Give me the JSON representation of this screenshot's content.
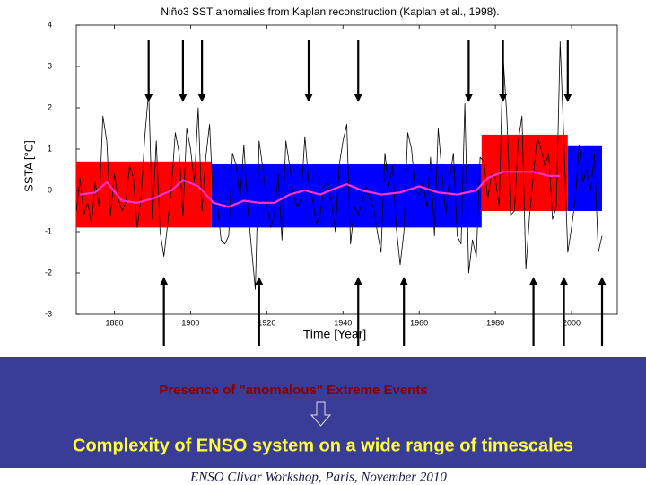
{
  "chart_data": {
    "type": "line",
    "title": "Niño3 SST anomalies from Kaplan reconstruction (Kaplan et al., 1998).",
    "y_label": "SSTA [°C]",
    "x_label": "Time [Year]",
    "xlim": [
      1870,
      2012
    ],
    "ylim": [
      -3,
      4
    ],
    "xticks": [
      1880,
      1900,
      1920,
      1940,
      1960,
      1980,
      2000
    ],
    "yticks": [
      -3,
      -2,
      -1,
      0,
      1,
      2,
      3,
      4
    ],
    "grid": false,
    "periods": [
      {
        "start": 1870,
        "end": 1905.5,
        "top": 0.7,
        "bottom": -0.9,
        "color": "#ff0000"
      },
      {
        "start": 1905.5,
        "end": 1976.4,
        "top": 0.63,
        "bottom": -0.9,
        "color": "#0000ff"
      },
      {
        "start": 1976.4,
        "end": 1999,
        "top": 1.35,
        "bottom": -0.5,
        "color": "#ff0000"
      },
      {
        "start": 1999,
        "end": 2008,
        "top": 1.07,
        "bottom": -0.5,
        "color": "#0000ff"
      }
    ],
    "series": [
      {
        "color": "#000000",
        "x": [
          1870,
          1871,
          1872,
          1873,
          1874,
          1875,
          1876,
          1877,
          1878,
          1879,
          1880,
          1881,
          1882,
          1883,
          1884,
          1885,
          1886,
          1887,
          1888,
          1889,
          1890,
          1891,
          1892,
          1893,
          1894,
          1895,
          1896,
          1897,
          1898,
          1899,
          1900,
          1901,
          1902,
          1903,
          1904,
          1905,
          1906,
          1907,
          1908,
          1909,
          1910,
          1911,
          1912,
          1913,
          1914,
          1915,
          1916,
          1917,
          1918,
          1919,
          1920,
          1921,
          1922,
          1923,
          1924,
          1925,
          1926,
          1927,
          1928,
          1929,
          1930,
          1931,
          1932,
          1933,
          1934,
          1935,
          1936,
          1937,
          1938,
          1939,
          1940,
          1941,
          1942,
          1943,
          1944,
          1945,
          1946,
          1947,
          1948,
          1949,
          1950,
          1951,
          1952,
          1953,
          1954,
          1955,
          1956,
          1957,
          1958,
          1959,
          1960,
          1961,
          1962,
          1963,
          1964,
          1965,
          1966,
          1967,
          1968,
          1969,
          1970,
          1971,
          1972,
          1973,
          1974,
          1975,
          1976,
          1977,
          1978,
          1979,
          1980,
          1981,
          1982,
          1983,
          1984,
          1985,
          1986,
          1987,
          1988,
          1989,
          1990,
          1991,
          1992,
          1993,
          1994,
          1995,
          1996,
          1997,
          1998,
          1999,
          2000,
          2001,
          2002,
          2003,
          2004,
          2005,
          2006,
          2007,
          2008
        ],
        "values": [
          -0.5,
          0.3,
          -0.6,
          -0.3,
          -0.8,
          0.2,
          -0.4,
          1.8,
          1.2,
          -0.6,
          0.4,
          -0.2,
          -0.5,
          -0.3,
          0.6,
          0.3,
          -0.9,
          -0.2,
          1.3,
          2.4,
          -0.7,
          1.2,
          -1.0,
          -1.6,
          -0.8,
          0.1,
          1.4,
          0.9,
          -0.6,
          1.5,
          1.0,
          0.2,
          2.0,
          -0.5,
          0.8,
          1.6,
          -0.4,
          -0.3,
          -1.2,
          -1.3,
          -1.1,
          0.9,
          0.6,
          -0.2,
          1.1,
          -0.4,
          -1.4,
          -2.4,
          1.2,
          0.5,
          -0.3,
          -0.9,
          -0.6,
          0.4,
          -1.2,
          1.2,
          0.6,
          -0.1,
          -0.4,
          -0.2,
          1.3,
          0.2,
          -0.2,
          -0.8,
          -0.6,
          0.1,
          0.2,
          -0.3,
          -1.0,
          0.6,
          1.2,
          1.6,
          -1.3,
          -0.4,
          -0.6,
          -0.3,
          0.1,
          -0.2,
          -0.4,
          -1.0,
          -1.5,
          0.9,
          0.1,
          0.6,
          -0.9,
          -1.8,
          -1.0,
          1.4,
          1.0,
          0.0,
          -0.1,
          0.2,
          -0.4,
          0.8,
          -1.1,
          1.5,
          0.4,
          -0.6,
          0.3,
          0.9,
          -1.1,
          -1.3,
          2.1,
          -2.0,
          -1.2,
          -1.6,
          0.8,
          0.7,
          -0.2,
          0.4,
          0.3,
          -0.4,
          3.3,
          1.8,
          -0.6,
          -0.5,
          1.2,
          1.8,
          -1.9,
          -0.6,
          0.4,
          1.3,
          1.0,
          0.6,
          0.9,
          -0.7,
          -0.4,
          3.6,
          1.2,
          -1.5,
          -0.9,
          -0.2,
          1.1,
          0.2,
          0.5,
          0.0,
          0.9,
          -1.5,
          -1.1
        ]
      },
      {
        "color": "#ff33cc",
        "x": [
          1871,
          1875,
          1878,
          1882,
          1886,
          1890,
          1895,
          1898,
          1902,
          1906,
          1910,
          1914,
          1918,
          1922,
          1926,
          1930,
          1934,
          1938,
          1941,
          1945,
          1950,
          1955,
          1960,
          1965,
          1970,
          1975,
          1978,
          1982,
          1986,
          1990,
          1994,
          1997
        ],
        "values": [
          -0.1,
          -0.05,
          0.2,
          -0.25,
          -0.3,
          -0.2,
          0.0,
          0.25,
          0.1,
          -0.3,
          -0.4,
          -0.25,
          -0.3,
          -0.3,
          -0.1,
          0.0,
          -0.1,
          0.05,
          0.15,
          0.0,
          -0.1,
          -0.05,
          0.1,
          -0.05,
          -0.1,
          0.0,
          0.3,
          0.45,
          0.45,
          0.45,
          0.35,
          0.35
        ]
      }
    ],
    "down_arrows": [
      1889,
      1898,
      1903,
      1931,
      1944,
      1973,
      1982,
      1999
    ],
    "up_arrows": [
      1893,
      1918,
      1944,
      1956,
      1990,
      1998,
      2008
    ]
  },
  "slide": {
    "statement": "Presence of \"anomalous\" Extreme Events",
    "conclusion": "Complexity of ENSO system on a wide range of timescales",
    "footer": "ENSO Clivar Workshop, Paris, November 2010"
  }
}
